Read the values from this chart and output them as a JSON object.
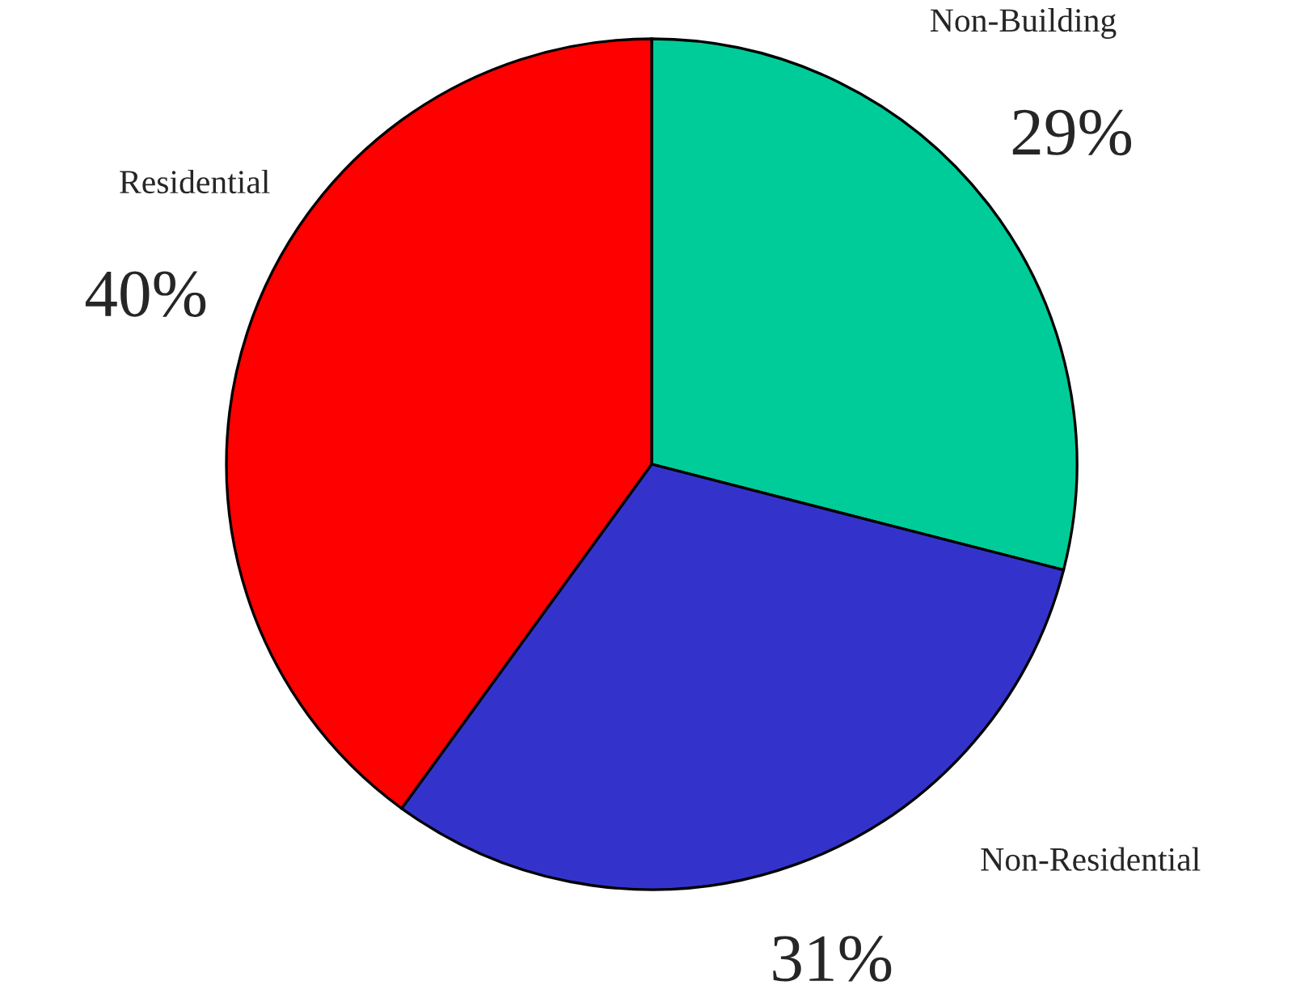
{
  "chart_data": {
    "type": "pie",
    "categories": [
      "Non-Building",
      "Non-Residential",
      "Residential"
    ],
    "values": [
      29,
      31,
      40
    ],
    "colors": [
      "#00cc99",
      "#3333cc",
      "#ff0000"
    ],
    "value_labels": [
      "29%",
      "31%",
      "40%"
    ],
    "legend": false
  }
}
